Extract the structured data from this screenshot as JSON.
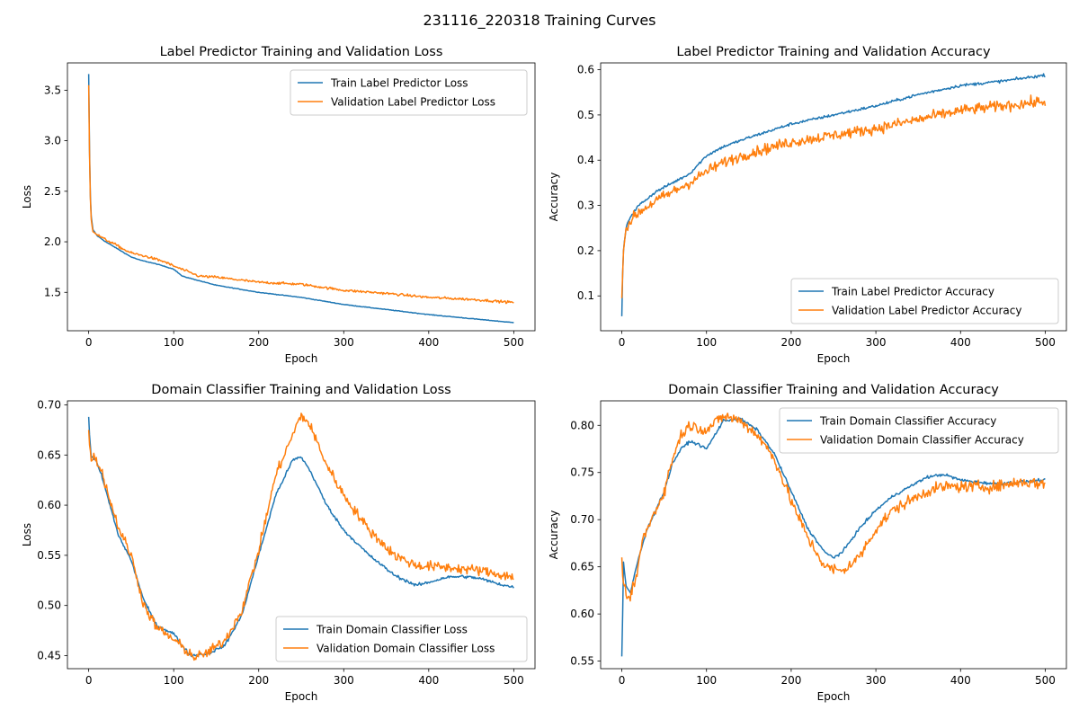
{
  "figure": {
    "suptitle": "231116_220318 Training Curves"
  },
  "colors": {
    "train": "#1f77b4",
    "validation": "#ff7f0e"
  },
  "chart_data": [
    {
      "type": "line",
      "title": "Label Predictor Training and Validation Loss",
      "xlabel": "Epoch",
      "ylabel": "Loss",
      "xlim": [
        -25,
        525
      ],
      "ylim": [
        1.12,
        3.77
      ],
      "xticks": [
        0,
        100,
        200,
        300,
        400,
        500
      ],
      "yticks": [
        1.5,
        2.0,
        2.5,
        3.0,
        3.5
      ],
      "ytick_labels": [
        "1.5",
        "2.0",
        "2.5",
        "3.0",
        "3.5"
      ],
      "legend": "upper right",
      "grid": false,
      "series": [
        {
          "name": "Train Label Predictor Loss",
          "color": "#1f77b4",
          "noise": 0.003,
          "points": [
            [
              0,
              3.66
            ],
            [
              1,
              2.9
            ],
            [
              2,
              2.45
            ],
            [
              3,
              2.25
            ],
            [
              5,
              2.12
            ],
            [
              10,
              2.06
            ],
            [
              20,
              2.0
            ],
            [
              30,
              1.95
            ],
            [
              40,
              1.9
            ],
            [
              50,
              1.85
            ],
            [
              60,
              1.82
            ],
            [
              80,
              1.78
            ],
            [
              100,
              1.73
            ],
            [
              110,
              1.66
            ],
            [
              150,
              1.57
            ],
            [
              200,
              1.5
            ],
            [
              250,
              1.45
            ],
            [
              300,
              1.38
            ],
            [
              350,
              1.33
            ],
            [
              400,
              1.28
            ],
            [
              450,
              1.24
            ],
            [
              500,
              1.2
            ]
          ]
        },
        {
          "name": "Validation Label Predictor Loss",
          "color": "#ff7f0e",
          "noise": 0.012,
          "points": [
            [
              0,
              3.55
            ],
            [
              1,
              2.85
            ],
            [
              2,
              2.42
            ],
            [
              3,
              2.22
            ],
            [
              5,
              2.11
            ],
            [
              10,
              2.07
            ],
            [
              20,
              2.02
            ],
            [
              30,
              1.98
            ],
            [
              40,
              1.93
            ],
            [
              50,
              1.89
            ],
            [
              70,
              1.85
            ],
            [
              90,
              1.8
            ],
            [
              100,
              1.76
            ],
            [
              130,
              1.66
            ],
            [
              150,
              1.65
            ],
            [
              200,
              1.6
            ],
            [
              250,
              1.58
            ],
            [
              300,
              1.52
            ],
            [
              350,
              1.49
            ],
            [
              400,
              1.45
            ],
            [
              450,
              1.43
            ],
            [
              500,
              1.4
            ]
          ]
        }
      ]
    },
    {
      "type": "line",
      "title": "Label Predictor Training and Validation Accuracy",
      "xlabel": "Epoch",
      "ylabel": "Accuracy",
      "xlim": [
        -25,
        525
      ],
      "ylim": [
        0.023,
        0.615
      ],
      "xticks": [
        0,
        100,
        200,
        300,
        400,
        500
      ],
      "yticks": [
        0.1,
        0.2,
        0.3,
        0.4,
        0.5,
        0.6
      ],
      "ytick_labels": [
        "0.1",
        "0.2",
        "0.3",
        "0.4",
        "0.5",
        "0.6"
      ],
      "legend": "lower right",
      "grid": false,
      "series": [
        {
          "name": "Train Label Predictor Accuracy",
          "color": "#1f77b4",
          "noise": 0.003,
          "points": [
            [
              0,
              0.055
            ],
            [
              1,
              0.15
            ],
            [
              2,
              0.2
            ],
            [
              5,
              0.25
            ],
            [
              10,
              0.275
            ],
            [
              20,
              0.3
            ],
            [
              40,
              0.33
            ],
            [
              60,
              0.35
            ],
            [
              80,
              0.37
            ],
            [
              100,
              0.41
            ],
            [
              120,
              0.43
            ],
            [
              150,
              0.45
            ],
            [
              200,
              0.48
            ],
            [
              250,
              0.5
            ],
            [
              300,
              0.52
            ],
            [
              350,
              0.545
            ],
            [
              400,
              0.565
            ],
            [
              450,
              0.575
            ],
            [
              500,
              0.588
            ]
          ]
        },
        {
          "name": "Validation Label Predictor Accuracy",
          "color": "#ff7f0e",
          "noise": 0.012,
          "points": [
            [
              0,
              0.095
            ],
            [
              1,
              0.15
            ],
            [
              2,
              0.2
            ],
            [
              5,
              0.25
            ],
            [
              10,
              0.265
            ],
            [
              20,
              0.285
            ],
            [
              40,
              0.31
            ],
            [
              60,
              0.33
            ],
            [
              80,
              0.35
            ],
            [
              100,
              0.375
            ],
            [
              120,
              0.395
            ],
            [
              150,
              0.415
            ],
            [
              200,
              0.44
            ],
            [
              250,
              0.455
            ],
            [
              300,
              0.47
            ],
            [
              350,
              0.49
            ],
            [
              400,
              0.51
            ],
            [
              450,
              0.52
            ],
            [
              500,
              0.53
            ]
          ]
        }
      ]
    },
    {
      "type": "line",
      "title": "Domain Classifier Training and Validation Loss",
      "xlabel": "Epoch",
      "ylabel": "Loss",
      "xlim": [
        -25,
        525
      ],
      "ylim": [
        0.437,
        0.704
      ],
      "xticks": [
        0,
        100,
        200,
        300,
        400,
        500
      ],
      "yticks": [
        0.45,
        0.5,
        0.55,
        0.6,
        0.65,
        0.7
      ],
      "ytick_labels": [
        "0.45",
        "0.50",
        "0.55",
        "0.60",
        "0.65",
        "0.70"
      ],
      "legend": "lower right",
      "grid": false,
      "series": [
        {
          "name": "Train Domain Classifier Loss",
          "color": "#1f77b4",
          "noise": 0.0015,
          "points": [
            [
              0,
              0.688
            ],
            [
              1,
              0.67
            ],
            [
              3,
              0.648
            ],
            [
              8,
              0.645
            ],
            [
              15,
              0.63
            ],
            [
              25,
              0.6
            ],
            [
              35,
              0.57
            ],
            [
              50,
              0.545
            ],
            [
              65,
              0.505
            ],
            [
              80,
              0.48
            ],
            [
              100,
              0.472
            ],
            [
              110,
              0.46
            ],
            [
              120,
              0.45
            ],
            [
              140,
              0.452
            ],
            [
              160,
              0.46
            ],
            [
              180,
              0.49
            ],
            [
              200,
              0.55
            ],
            [
              220,
              0.61
            ],
            [
              240,
              0.645
            ],
            [
              250,
              0.648
            ],
            [
              260,
              0.635
            ],
            [
              280,
              0.6
            ],
            [
              300,
              0.575
            ],
            [
              330,
              0.55
            ],
            [
              360,
              0.53
            ],
            [
              385,
              0.52
            ],
            [
              400,
              0.523
            ],
            [
              420,
              0.528
            ],
            [
              440,
              0.529
            ],
            [
              460,
              0.527
            ],
            [
              480,
              0.522
            ],
            [
              500,
              0.518
            ]
          ]
        },
        {
          "name": "Validation Domain Classifier Loss",
          "color": "#ff7f0e",
          "noise": 0.005,
          "points": [
            [
              0,
              0.675
            ],
            [
              1,
              0.66
            ],
            [
              3,
              0.648
            ],
            [
              8,
              0.647
            ],
            [
              15,
              0.635
            ],
            [
              25,
              0.605
            ],
            [
              35,
              0.578
            ],
            [
              50,
              0.55
            ],
            [
              65,
              0.5
            ],
            [
              80,
              0.478
            ],
            [
              100,
              0.466
            ],
            [
              115,
              0.455
            ],
            [
              125,
              0.448
            ],
            [
              140,
              0.453
            ],
            [
              160,
              0.465
            ],
            [
              180,
              0.495
            ],
            [
              200,
              0.555
            ],
            [
              220,
              0.63
            ],
            [
              240,
              0.67
            ],
            [
              250,
              0.69
            ],
            [
              260,
              0.68
            ],
            [
              280,
              0.64
            ],
            [
              300,
              0.61
            ],
            [
              330,
              0.575
            ],
            [
              360,
              0.55
            ],
            [
              385,
              0.54
            ],
            [
              420,
              0.538
            ],
            [
              460,
              0.535
            ],
            [
              500,
              0.528
            ]
          ]
        }
      ]
    },
    {
      "type": "line",
      "title": "Domain Classifier Training and Validation Accuracy",
      "xlabel": "Epoch",
      "ylabel": "Accuracy",
      "xlim": [
        -25,
        525
      ],
      "ylim": [
        0.542,
        0.826
      ],
      "xticks": [
        0,
        100,
        200,
        300,
        400,
        500
      ],
      "yticks": [
        0.55,
        0.6,
        0.65,
        0.7,
        0.75,
        0.8
      ],
      "ytick_labels": [
        "0.55",
        "0.60",
        "0.65",
        "0.70",
        "0.75",
        "0.80"
      ],
      "legend": "upper right",
      "grid": false,
      "series": [
        {
          "name": "Train Domain Classifier Accuracy",
          "color": "#1f77b4",
          "noise": 0.0015,
          "points": [
            [
              0,
              0.555
            ],
            [
              1,
              0.6
            ],
            [
              2,
              0.655
            ],
            [
              5,
              0.63
            ],
            [
              10,
              0.622
            ],
            [
              20,
              0.66
            ],
            [
              30,
              0.69
            ],
            [
              40,
              0.71
            ],
            [
              50,
              0.73
            ],
            [
              60,
              0.76
            ],
            [
              70,
              0.775
            ],
            [
              80,
              0.783
            ],
            [
              90,
              0.78
            ],
            [
              100,
              0.775
            ],
            [
              110,
              0.79
            ],
            [
              120,
              0.805
            ],
            [
              140,
              0.807
            ],
            [
              160,
              0.795
            ],
            [
              180,
              0.77
            ],
            [
              200,
              0.73
            ],
            [
              220,
              0.69
            ],
            [
              240,
              0.665
            ],
            [
              250,
              0.66
            ],
            [
              260,
              0.665
            ],
            [
              280,
              0.69
            ],
            [
              300,
              0.71
            ],
            [
              320,
              0.725
            ],
            [
              340,
              0.735
            ],
            [
              360,
              0.745
            ],
            [
              380,
              0.748
            ],
            [
              400,
              0.742
            ],
            [
              440,
              0.738
            ],
            [
              470,
              0.74
            ],
            [
              500,
              0.742
            ]
          ]
        },
        {
          "name": "Validation Domain Classifier Accuracy",
          "color": "#ff7f0e",
          "noise": 0.006,
          "points": [
            [
              0,
              0.66
            ],
            [
              1,
              0.64
            ],
            [
              3,
              0.625
            ],
            [
              8,
              0.615
            ],
            [
              15,
              0.63
            ],
            [
              25,
              0.68
            ],
            [
              35,
              0.7
            ],
            [
              50,
              0.73
            ],
            [
              60,
              0.765
            ],
            [
              70,
              0.79
            ],
            [
              80,
              0.8
            ],
            [
              100,
              0.795
            ],
            [
              120,
              0.81
            ],
            [
              140,
              0.805
            ],
            [
              160,
              0.79
            ],
            [
              180,
              0.765
            ],
            [
              200,
              0.72
            ],
            [
              220,
              0.68
            ],
            [
              240,
              0.65
            ],
            [
              260,
              0.645
            ],
            [
              280,
              0.66
            ],
            [
              300,
              0.69
            ],
            [
              320,
              0.71
            ],
            [
              340,
              0.72
            ],
            [
              360,
              0.73
            ],
            [
              380,
              0.735
            ],
            [
              400,
              0.735
            ],
            [
              440,
              0.735
            ],
            [
              470,
              0.74
            ],
            [
              500,
              0.738
            ]
          ]
        }
      ]
    }
  ]
}
